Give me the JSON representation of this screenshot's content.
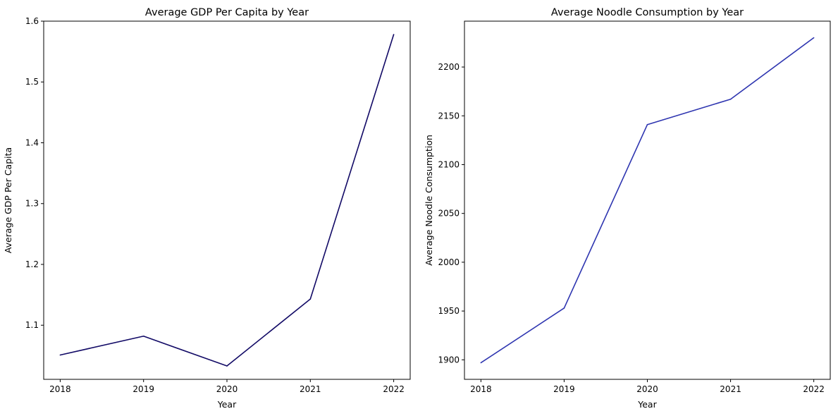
{
  "chart_data": [
    {
      "type": "line",
      "title": "Average GDP Per Capita by Year",
      "xlabel": "Year",
      "ylabel": "Average GDP Per Capita",
      "categories": [
        "2018",
        "2019",
        "2020",
        "2021",
        "2022"
      ],
      "series": [
        {
          "values": [
            1.051,
            1.082,
            1.033,
            1.143,
            1.578
          ],
          "color": "#120a66"
        }
      ],
      "ylim": [
        1.011,
        1.6
      ],
      "yticks": [
        "1.1",
        "1.2",
        "1.3",
        "1.4",
        "1.5",
        "1.6"
      ],
      "grid": false,
      "legend": "none"
    },
    {
      "type": "line",
      "title": "Average Noodle Consumption by Year",
      "xlabel": "Year",
      "ylabel": "Average Noodle Consumption",
      "categories": [
        "2018",
        "2019",
        "2020",
        "2021",
        "2022"
      ],
      "series": [
        {
          "values": [
            1897,
            1953,
            2141,
            2167,
            2230
          ],
          "color": "#2e35b0"
        }
      ],
      "ylim": [
        1880,
        2247
      ],
      "yticks": [
        "1900",
        "1950",
        "2000",
        "2050",
        "2100",
        "2150",
        "2200"
      ],
      "grid": false,
      "legend": "none"
    }
  ]
}
